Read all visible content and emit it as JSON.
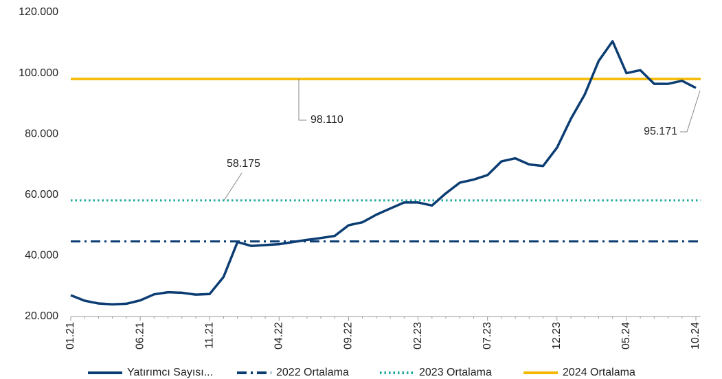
{
  "chart_data": {
    "type": "line",
    "categories": [
      "01.21",
      null,
      null,
      null,
      null,
      "06.21",
      null,
      null,
      null,
      null,
      "11.21",
      null,
      null,
      null,
      null,
      "04.22",
      null,
      null,
      null,
      null,
      "09.22",
      null,
      null,
      null,
      null,
      "02.23",
      null,
      null,
      null,
      null,
      "07.23",
      null,
      null,
      null,
      null,
      "12.23",
      null,
      null,
      null,
      null,
      "05.24",
      null,
      null,
      null,
      null,
      "10.24"
    ],
    "series": [
      {
        "name": "Yatırımcı Sayısı...",
        "color": "#0b3d73",
        "values": [
          27000,
          25200,
          24300,
          24000,
          24200,
          25300,
          27300,
          28000,
          27800,
          27200,
          27400,
          33000,
          44500,
          43200,
          43500,
          43800,
          44500,
          45200,
          45800,
          46500,
          50000,
          51000,
          53500,
          55500,
          57500,
          57500,
          56500,
          60500,
          64000,
          65000,
          66500,
          71000,
          72000,
          70000,
          69500,
          75500,
          85000,
          93000,
          104000,
          110500,
          100000,
          101000,
          96500,
          96500,
          97500,
          95171
        ]
      }
    ],
    "reference_lines": [
      {
        "name": "2022 Ortalama",
        "value": 44700,
        "color": "#0b3d73",
        "style": "dashdot"
      },
      {
        "name": "2023 Ortalama",
        "value": 58175,
        "value_label": "58.175",
        "color": "#1aa89a",
        "style": "dotted"
      },
      {
        "name": "2024 Ortalama",
        "value": 98110,
        "value_label": "98.110",
        "color": "#f5b800",
        "style": "solid"
      }
    ],
    "annotations": [
      {
        "label": "95.171",
        "value": 95171
      }
    ],
    "ylim": [
      20000,
      120000
    ],
    "yticks": [
      {
        "value": 20000,
        "label": "20.000"
      },
      {
        "value": 40000,
        "label": "40.000"
      },
      {
        "value": 60000,
        "label": "60.000"
      },
      {
        "value": 80000,
        "label": "80.000"
      },
      {
        "value": 100000,
        "label": "100.000"
      },
      {
        "value": 120000,
        "label": "120.000"
      }
    ],
    "grid": false,
    "legend": "bottom"
  }
}
